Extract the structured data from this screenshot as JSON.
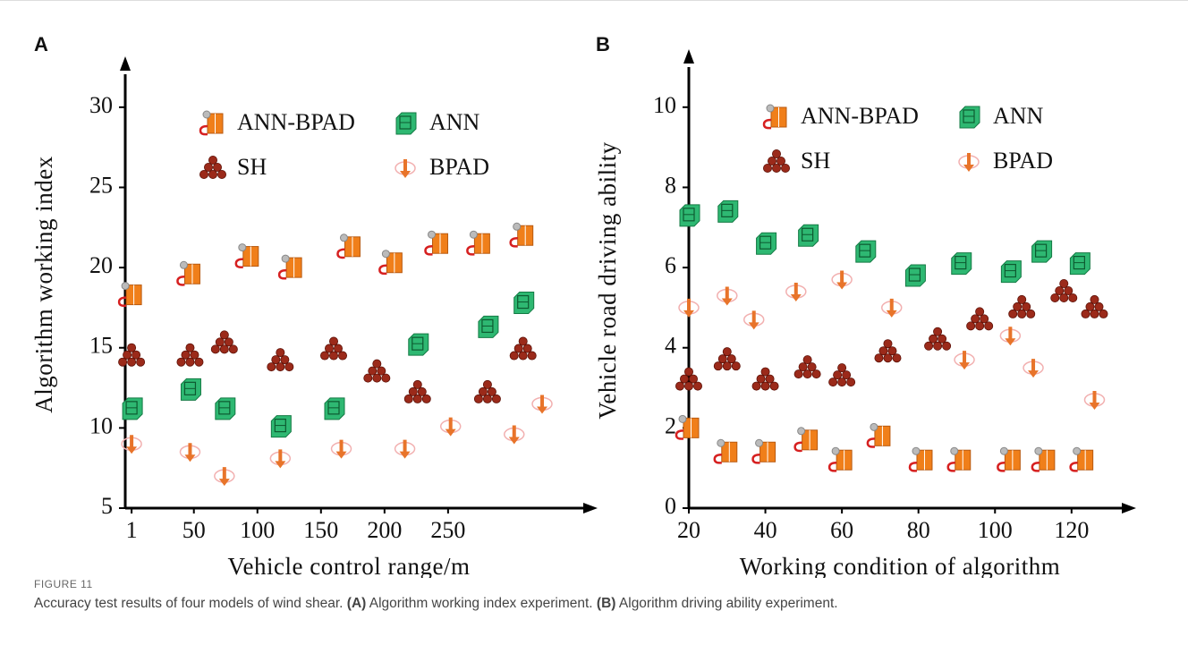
{
  "chart_data": [
    {
      "type": "scatter",
      "panel_label": "A",
      "x_label": "Vehicle control range/m",
      "y_label": "Algorithm working index",
      "xlim": [
        -4,
        362
      ],
      "ylim": [
        5,
        32
      ],
      "xticks": [
        1,
        50,
        100,
        150,
        200,
        250
      ],
      "yticks": [
        5,
        10,
        15,
        20,
        25,
        30
      ],
      "series": [
        {
          "name": "ANN-BPAD",
          "color": "#f07f1a",
          "marker": "cabinet",
          "x": [
            1,
            47,
            93,
            127,
            173,
            206,
            242,
            275,
            309
          ],
          "values": [
            18.3,
            19.6,
            20.7,
            20.0,
            21.3,
            20.3,
            21.5,
            21.5,
            22.0
          ]
        },
        {
          "name": "ANN",
          "color": "#2eb872",
          "marker": "block",
          "x": [
            1,
            47,
            74,
            118,
            160,
            226,
            281,
            309
          ],
          "values": [
            11.2,
            12.4,
            11.2,
            10.1,
            11.2,
            15.2,
            16.3,
            17.8
          ]
        },
        {
          "name": "SH",
          "color": "#9b2a1a",
          "marker": "pyramid",
          "x": [
            1,
            47,
            74,
            118,
            160,
            194,
            226,
            281,
            309
          ],
          "values": [
            14.5,
            14.5,
            15.3,
            14.2,
            14.9,
            13.5,
            12.2,
            12.2,
            14.9
          ]
        },
        {
          "name": "BPAD",
          "color": "#e8742a",
          "marker": "arrow",
          "x": [
            1,
            47,
            74,
            118,
            166,
            216,
            252,
            302,
            324
          ],
          "values": [
            9.0,
            8.5,
            7.0,
            8.1,
            8.7,
            8.7,
            10.1,
            9.6,
            11.5
          ]
        }
      ]
    },
    {
      "type": "scatter",
      "panel_label": "B",
      "x_label": "Working condition of algorithm",
      "y_label": "Vehicle road driving ability",
      "xlim": [
        20,
        135
      ],
      "ylim": [
        0,
        11
      ],
      "xticks": [
        20,
        40,
        60,
        80,
        100,
        120
      ],
      "yticks": [
        0,
        2,
        4,
        6,
        8,
        10
      ],
      "series": [
        {
          "name": "ANN-BPAD",
          "color": "#f07f1a",
          "marker": "cabinet",
          "x": [
            20,
            30,
            40,
            51,
            60,
            70,
            81,
            91,
            104,
            113,
            123
          ],
          "values": [
            2.0,
            1.4,
            1.4,
            1.7,
            1.2,
            1.8,
            1.2,
            1.2,
            1.2,
            1.2,
            1.2
          ]
        },
        {
          "name": "ANN",
          "color": "#2eb872",
          "marker": "block",
          "x": [
            20,
            30,
            40,
            51,
            66,
            79,
            91,
            104,
            112,
            122
          ],
          "values": [
            7.3,
            7.4,
            6.6,
            6.8,
            6.4,
            5.8,
            6.1,
            5.9,
            6.4,
            6.1
          ]
        },
        {
          "name": "SH",
          "color": "#9b2a1a",
          "marker": "pyramid",
          "x": [
            20,
            30,
            40,
            51,
            60,
            72,
            85,
            96,
            107,
            118,
            126
          ],
          "values": [
            3.2,
            3.7,
            3.2,
            3.5,
            3.3,
            3.9,
            4.2,
            4.7,
            5.0,
            5.4,
            5.0
          ]
        },
        {
          "name": "BPAD",
          "color": "#e8742a",
          "marker": "arrow",
          "x": [
            20,
            30,
            37,
            48,
            60,
            73,
            92,
            104,
            110,
            126
          ],
          "values": [
            5.0,
            5.3,
            4.7,
            5.4,
            5.7,
            5.0,
            3.7,
            4.3,
            3.5,
            2.7
          ]
        }
      ]
    }
  ],
  "caption": {
    "label": "FIGURE 11",
    "parts": [
      "Accuracy test results of four models of wind shear.",
      "(A)",
      "Algorithm working index experiment.",
      "(B)",
      "Algorithm driving ability experiment."
    ]
  }
}
